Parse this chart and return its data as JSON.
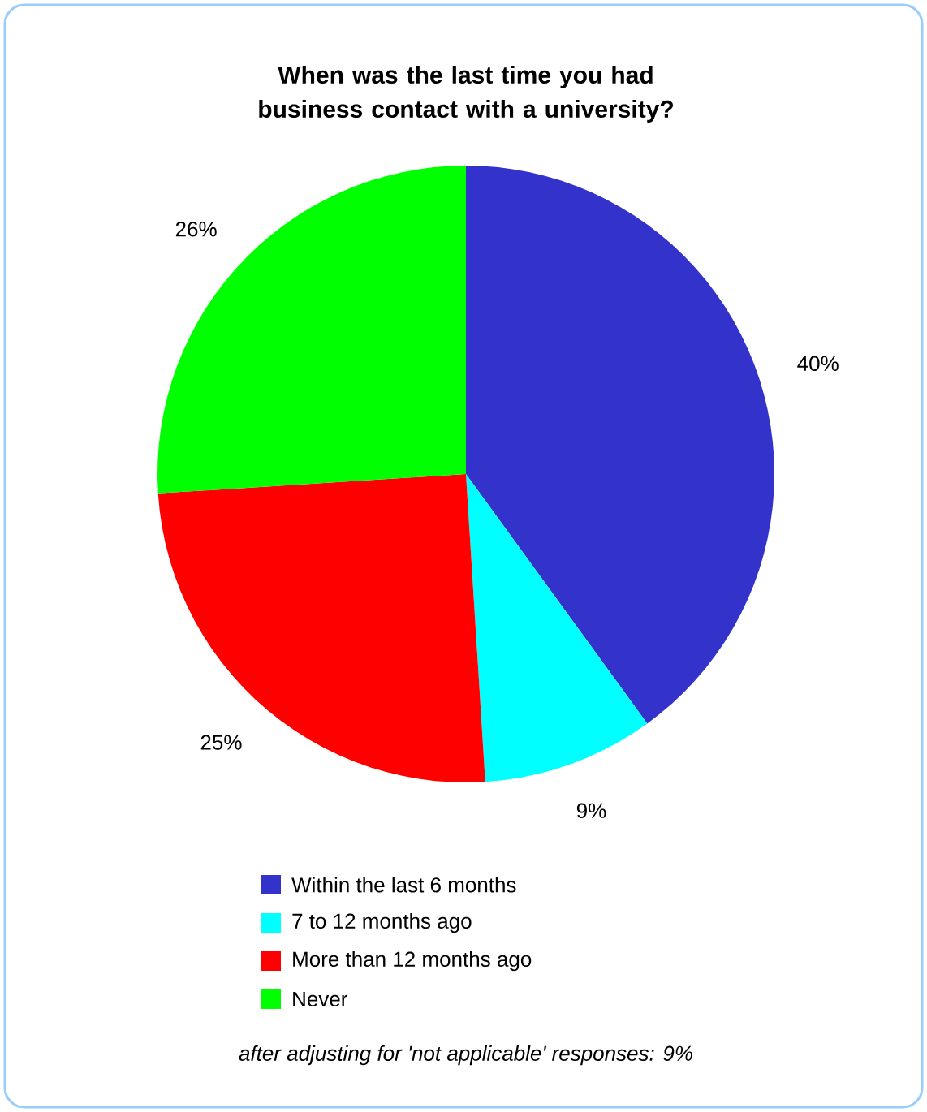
{
  "chart_data": {
    "type": "pie",
    "title": "When was the last time you had business contact with a university?",
    "categories": [
      "Within the last 6 months",
      "7 to 12 months ago",
      "More than 12 months ago",
      "Never"
    ],
    "values": [
      40,
      9,
      25,
      26
    ],
    "colors": [
      "#3333cc",
      "#00ffff",
      "#ff0000",
      "#00ff00"
    ],
    "value_labels": [
      "40%",
      "9%",
      "25%",
      "26%"
    ],
    "legend": "bottom",
    "annotations": [
      "after adjusting for 'not applicable' responses: 9%"
    ]
  }
}
